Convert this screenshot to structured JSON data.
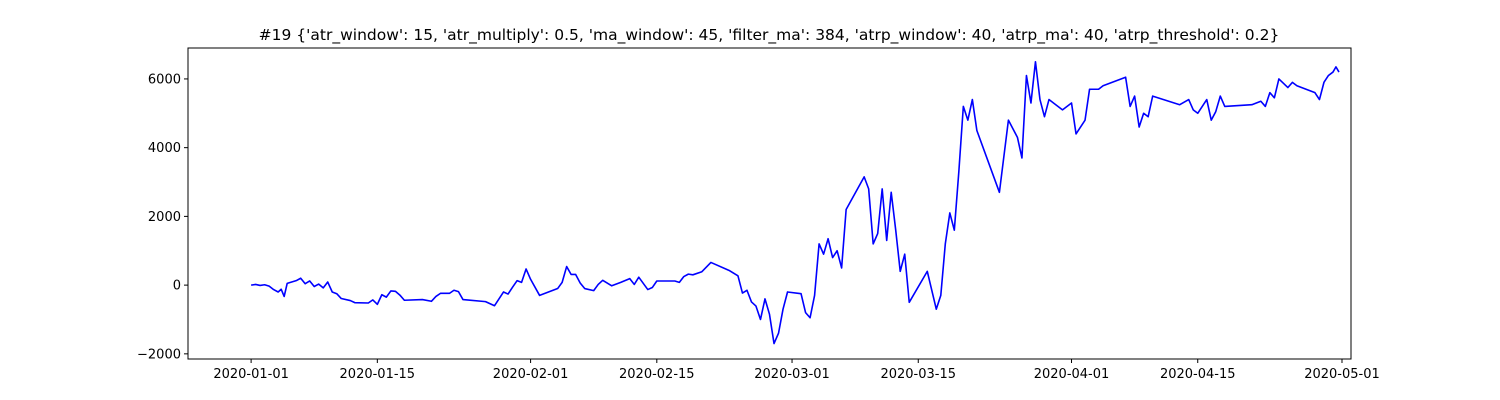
{
  "chart_data": {
    "type": "line",
    "title": "#19 {'atr_window': 15, 'atr_multiply': 0.5, 'ma_window': 45, 'filter_ma': 384, 'atrp_window': 40, 'atrp_ma': 40, 'atrp_threshold': 0.2}",
    "xlabel": "",
    "ylabel": "",
    "x_axis_type": "date",
    "xlim": [
      "2019-12-25",
      "2020-05-02"
    ],
    "ylim": [
      -2150,
      6900
    ],
    "grid": false,
    "line_color": "#0000ff",
    "xticks": [
      "2020-01-01",
      "2020-01-15",
      "2020-02-01",
      "2020-02-15",
      "2020-03-01",
      "2020-03-15",
      "2020-04-01",
      "2020-04-15",
      "2020-05-01"
    ],
    "yticks": [
      -2000,
      0,
      2000,
      4000,
      6000
    ],
    "ytick_labels": [
      "−2000",
      "0",
      "2000",
      "4000",
      "6000"
    ],
    "series": [
      {
        "points": [
          [
            "2020-01-01",
            0
          ],
          [
            "2020-01-01",
            20
          ],
          [
            "2020-01-02",
            -10
          ],
          [
            "2020-01-02",
            10
          ],
          [
            "2020-01-03",
            -30
          ],
          [
            "2020-01-03",
            -130
          ],
          [
            "2020-01-04",
            -200
          ],
          [
            "2020-01-04",
            -120
          ],
          [
            "2020-01-04",
            -330
          ],
          [
            "2020-01-05",
            50
          ],
          [
            "2020-01-06",
            130
          ],
          [
            "2020-01-06",
            200
          ],
          [
            "2020-01-07",
            40
          ],
          [
            "2020-01-07",
            120
          ],
          [
            "2020-01-08",
            -40
          ],
          [
            "2020-01-08",
            30
          ],
          [
            "2020-01-09",
            -80
          ],
          [
            "2020-01-09",
            90
          ],
          [
            "2020-01-10",
            -200
          ],
          [
            "2020-01-10",
            -250
          ],
          [
            "2020-01-11",
            -390
          ],
          [
            "2020-01-12",
            -450
          ],
          [
            "2020-01-12",
            -510
          ],
          [
            "2020-01-14",
            -520
          ],
          [
            "2020-01-14",
            -430
          ],
          [
            "2020-01-15",
            -560
          ],
          [
            "2020-01-15",
            -280
          ],
          [
            "2020-01-16",
            -350
          ],
          [
            "2020-01-16",
            -170
          ],
          [
            "2020-01-17",
            -180
          ],
          [
            "2020-01-17",
            -290
          ],
          [
            "2020-01-18",
            -440
          ],
          [
            "2020-01-20",
            -420
          ],
          [
            "2020-01-21",
            -470
          ],
          [
            "2020-01-21",
            -330
          ],
          [
            "2020-01-22",
            -240
          ],
          [
            "2020-01-23",
            -240
          ],
          [
            "2020-01-23",
            -150
          ],
          [
            "2020-01-24",
            -190
          ],
          [
            "2020-01-24",
            -420
          ],
          [
            "2020-01-27",
            -480
          ],
          [
            "2020-01-28",
            -600
          ],
          [
            "2020-01-29",
            -200
          ],
          [
            "2020-01-29",
            -260
          ],
          [
            "2020-01-30",
            -60
          ],
          [
            "2020-01-30",
            130
          ],
          [
            "2020-01-31",
            80
          ],
          [
            "2020-01-31",
            470
          ],
          [
            "2020-02-01",
            170
          ],
          [
            "2020-02-02",
            -300
          ],
          [
            "2020-02-04",
            -100
          ],
          [
            "2020-02-04",
            80
          ],
          [
            "2020-02-05",
            540
          ],
          [
            "2020-02-05",
            310
          ],
          [
            "2020-02-06",
            310
          ],
          [
            "2020-02-06",
            60
          ],
          [
            "2020-02-07",
            -100
          ],
          [
            "2020-02-08",
            -160
          ],
          [
            "2020-02-08",
            20
          ],
          [
            "2020-02-09",
            140
          ],
          [
            "2020-02-10",
            -20
          ],
          [
            "2020-02-11",
            80
          ],
          [
            "2020-02-12",
            190
          ],
          [
            "2020-02-12",
            20
          ],
          [
            "2020-02-13",
            230
          ],
          [
            "2020-02-14",
            -130
          ],
          [
            "2020-02-14",
            -70
          ],
          [
            "2020-02-15",
            120
          ],
          [
            "2020-02-17",
            120
          ],
          [
            "2020-02-17",
            80
          ],
          [
            "2020-02-18",
            250
          ],
          [
            "2020-02-18",
            320
          ],
          [
            "2020-02-19",
            300
          ],
          [
            "2020-02-20",
            390
          ],
          [
            "2020-02-21",
            660
          ],
          [
            "2020-02-23",
            430
          ],
          [
            "2020-02-24",
            270
          ],
          [
            "2020-02-24",
            -230
          ],
          [
            "2020-02-25",
            -150
          ],
          [
            "2020-02-25",
            -490
          ],
          [
            "2020-02-26",
            -610
          ],
          [
            "2020-02-26",
            -1000
          ],
          [
            "2020-02-27",
            -400
          ],
          [
            "2020-02-27",
            -850
          ],
          [
            "2020-02-28",
            -1700
          ],
          [
            "2020-02-28",
            -1400
          ],
          [
            "2020-02-29",
            -700
          ],
          [
            "2020-02-29",
            -200
          ],
          [
            "2020-03-02",
            -250
          ],
          [
            "2020-03-02",
            -800
          ],
          [
            "2020-03-03",
            -950
          ],
          [
            "2020-03-03",
            -300
          ],
          [
            "2020-03-04",
            1200
          ],
          [
            "2020-03-04",
            900
          ],
          [
            "2020-03-05",
            1350
          ],
          [
            "2020-03-05",
            800
          ],
          [
            "2020-03-06",
            1000
          ],
          [
            "2020-03-06",
            500
          ],
          [
            "2020-03-07",
            2200
          ],
          [
            "2020-03-09",
            3150
          ],
          [
            "2020-03-09",
            2800
          ],
          [
            "2020-03-10",
            1200
          ],
          [
            "2020-03-10",
            1500
          ],
          [
            "2020-03-11",
            2800
          ],
          [
            "2020-03-11",
            1300
          ],
          [
            "2020-03-12",
            2700
          ],
          [
            "2020-03-12",
            1600
          ],
          [
            "2020-03-13",
            400
          ],
          [
            "2020-03-13",
            900
          ],
          [
            "2020-03-14",
            -500
          ],
          [
            "2020-03-16",
            400
          ],
          [
            "2020-03-17",
            -700
          ],
          [
            "2020-03-17",
            -300
          ],
          [
            "2020-03-18",
            1200
          ],
          [
            "2020-03-18",
            2100
          ],
          [
            "2020-03-19",
            1600
          ],
          [
            "2020-03-19",
            3300
          ],
          [
            "2020-03-20",
            5200
          ],
          [
            "2020-03-20",
            4800
          ],
          [
            "2020-03-21",
            5400
          ],
          [
            "2020-03-21",
            4500
          ],
          [
            "2020-03-24",
            2700
          ],
          [
            "2020-03-25",
            4800
          ],
          [
            "2020-03-26",
            4300
          ],
          [
            "2020-03-26",
            3700
          ],
          [
            "2020-03-27",
            6100
          ],
          [
            "2020-03-27",
            5300
          ],
          [
            "2020-03-28",
            6500
          ],
          [
            "2020-03-28",
            5400
          ],
          [
            "2020-03-29",
            4900
          ],
          [
            "2020-03-29",
            5400
          ],
          [
            "2020-03-30",
            5300
          ],
          [
            "2020-03-31",
            5100
          ],
          [
            "2020-04-01",
            5300
          ],
          [
            "2020-04-01",
            4400
          ],
          [
            "2020-04-02",
            4600
          ],
          [
            "2020-04-02",
            4800
          ],
          [
            "2020-04-03",
            5700
          ],
          [
            "2020-04-04",
            5700
          ],
          [
            "2020-04-04",
            5800
          ],
          [
            "2020-04-07",
            6050
          ],
          [
            "2020-04-07",
            5200
          ],
          [
            "2020-04-08",
            5500
          ],
          [
            "2020-04-08",
            4600
          ],
          [
            "2020-04-09",
            5000
          ],
          [
            "2020-04-09",
            4900
          ],
          [
            "2020-04-10",
            5500
          ],
          [
            "2020-04-13",
            5250
          ],
          [
            "2020-04-14",
            5400
          ],
          [
            "2020-04-14",
            5100
          ],
          [
            "2020-04-15",
            5000
          ],
          [
            "2020-04-16",
            5400
          ],
          [
            "2020-04-16",
            4800
          ],
          [
            "2020-04-17",
            5050
          ],
          [
            "2020-04-17",
            5500
          ],
          [
            "2020-04-18",
            5200
          ],
          [
            "2020-04-21",
            5250
          ],
          [
            "2020-04-22",
            5350
          ],
          [
            "2020-04-22",
            5200
          ],
          [
            "2020-04-23",
            5600
          ],
          [
            "2020-04-23",
            5450
          ],
          [
            "2020-04-24",
            6000
          ],
          [
            "2020-04-25",
            5750
          ],
          [
            "2020-04-25",
            5900
          ],
          [
            "2020-04-26",
            5800
          ],
          [
            "2020-04-28",
            5600
          ],
          [
            "2020-04-28",
            5400
          ],
          [
            "2020-04-29",
            5900
          ],
          [
            "2020-04-29",
            6100
          ],
          [
            "2020-04-30",
            6200
          ],
          [
            "2020-04-30",
            6350
          ],
          [
            "2020-04-30",
            6200
          ]
        ]
      }
    ]
  }
}
